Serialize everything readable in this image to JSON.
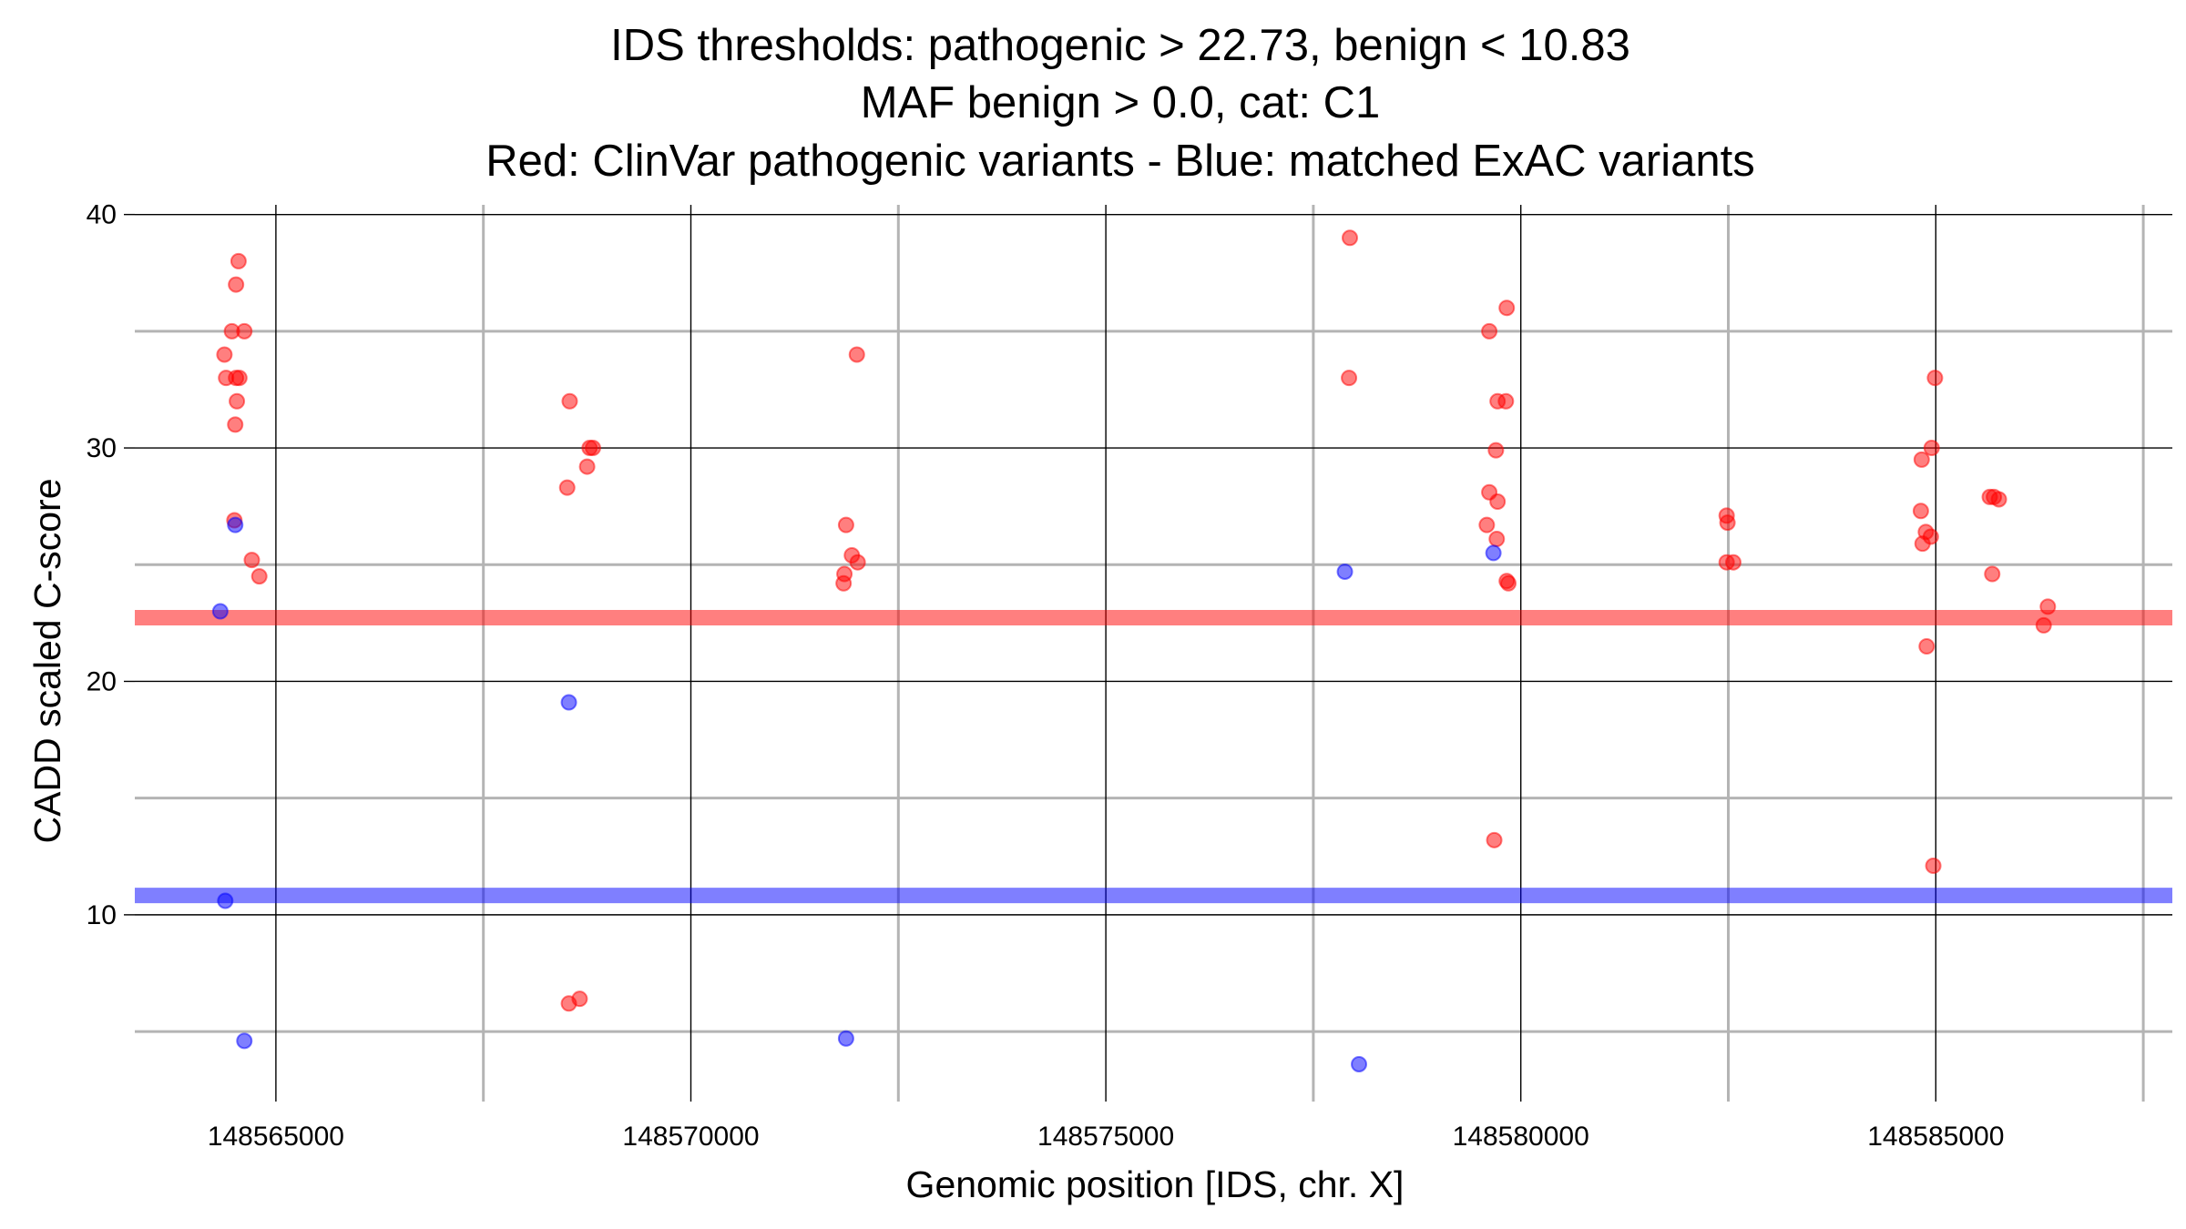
{
  "chart_data": {
    "type": "scatter",
    "title_lines": [
      "IDS thresholds: pathogenic > 22.73, benign < 10.83",
      "MAF benign > 0.0, cat: C1",
      "Red: ClinVar pathogenic variants - Blue: matched ExAC variants"
    ],
    "xlabel": "Genomic position [IDS, chr. X]",
    "ylabel": "CADD scaled C-score",
    "xlim": [
      148563300,
      148587850
    ],
    "ylim": [
      2.0,
      41.0
    ],
    "x_ticks": [
      148565000,
      148570000,
      148575000,
      148580000,
      148585000
    ],
    "x_tick_labels": [
      "148565000",
      "148570000",
      "148575000",
      "148580000",
      "148585000"
    ],
    "x_minor_grid": [
      148567500,
      148572500,
      148577500,
      148582500,
      148587500
    ],
    "y_ticks": [
      10,
      20,
      30,
      40
    ],
    "y_tick_labels": [
      "10",
      "20",
      "30",
      "40"
    ],
    "y_minor_grid": [
      5,
      15,
      25,
      35
    ],
    "grid": true,
    "thresholds": {
      "pathogenic": {
        "value": 22.73,
        "color": "#ff0000"
      },
      "benign": {
        "value": 10.83,
        "color": "#0000ff"
      }
    },
    "series": [
      {
        "color": "#ff0000",
        "points": [
          [
            148564550,
            38
          ],
          [
            148564520,
            37
          ],
          [
            148564470,
            35
          ],
          [
            148564620,
            35
          ],
          [
            148564380,
            34
          ],
          [
            148564400,
            33
          ],
          [
            148564520,
            33
          ],
          [
            148564560,
            33
          ],
          [
            148564530,
            32
          ],
          [
            148564510,
            31
          ],
          [
            148564500,
            26.9
          ],
          [
            148564710,
            25.2
          ],
          [
            148564800,
            24.5
          ],
          [
            148568540,
            32
          ],
          [
            148568780,
            30
          ],
          [
            148568820,
            30
          ],
          [
            148568750,
            29.2
          ],
          [
            148568510,
            28.3
          ],
          [
            148568530,
            6.2
          ],
          [
            148568660,
            6.4
          ],
          [
            148572000,
            34
          ],
          [
            148571870,
            26.7
          ],
          [
            148571940,
            25.4
          ],
          [
            148572010,
            25.1
          ],
          [
            148571850,
            24.6
          ],
          [
            148571840,
            24.2
          ],
          [
            148577940,
            39
          ],
          [
            148577930,
            33
          ],
          [
            148579830,
            36
          ],
          [
            148579620,
            35
          ],
          [
            148579720,
            32
          ],
          [
            148579820,
            32
          ],
          [
            148579700,
            29.9
          ],
          [
            148579620,
            28.1
          ],
          [
            148579720,
            27.7
          ],
          [
            148579590,
            26.7
          ],
          [
            148579710,
            26.1
          ],
          [
            148579830,
            24.3
          ],
          [
            148579850,
            24.2
          ],
          [
            148579680,
            13.2
          ],
          [
            148582480,
            27.1
          ],
          [
            148582490,
            26.8
          ],
          [
            148582480,
            25.1
          ],
          [
            148582560,
            25.1
          ],
          [
            148584990,
            33
          ],
          [
            148584950,
            30
          ],
          [
            148584830,
            29.5
          ],
          [
            148584820,
            27.3
          ],
          [
            148584880,
            26.4
          ],
          [
            148584940,
            26.2
          ],
          [
            148584840,
            25.9
          ],
          [
            148584890,
            21.5
          ],
          [
            148584970,
            12.1
          ],
          [
            148585700,
            27.9
          ],
          [
            148585760,
            27.8
          ],
          [
            148585650,
            27.9
          ],
          [
            148585680,
            24.6
          ],
          [
            148586350,
            23.2
          ],
          [
            148586300,
            22.4
          ]
        ]
      },
      {
        "color": "#0000ff",
        "points": [
          [
            148564510,
            26.7
          ],
          [
            148564330,
            23.0
          ],
          [
            148564390,
            10.6
          ],
          [
            148564620,
            4.6
          ],
          [
            148568530,
            19.1
          ],
          [
            148571870,
            4.7
          ],
          [
            148577880,
            24.7
          ],
          [
            148578050,
            3.6
          ],
          [
            148579670,
            25.5
          ]
        ]
      }
    ]
  }
}
